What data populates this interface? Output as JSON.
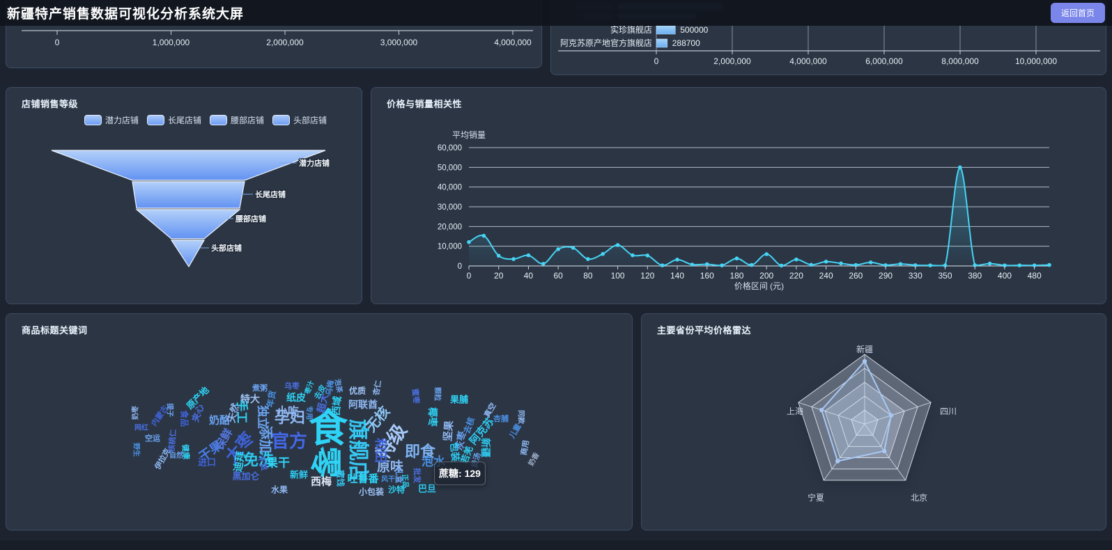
{
  "header": {
    "title": "新疆特产销售数据可视化分析系统大屏",
    "back_button_label": "返回首页"
  },
  "colors": {
    "page_bg": "#1d2430",
    "panel_bg": "#2b3544",
    "panel_border": "#3e4b61",
    "accent_button": "#7b86ea",
    "line_color": "#46d4f4",
    "bar_color": "#8ec6f6",
    "funnel_light": "#b3d0fa",
    "funnel_dark": "#6292f2",
    "radar_data": "#a8c8f4"
  },
  "chart_data": [
    {
      "id": "top-left-partial-bar",
      "type": "bar",
      "x_ticks": [
        "0",
        "1,000,000",
        "2,000,000",
        "3,000,000",
        "4,000,000"
      ]
    },
    {
      "id": "top-right-partial-bar",
      "type": "bar",
      "orientation": "horizontal",
      "categories": [
        "实珍旗舰店",
        "阿克苏原产地官方旗舰店"
      ],
      "values": [
        500000,
        288700
      ],
      "value_labels": [
        "500000",
        "288700"
      ],
      "x_ticks": [
        "0",
        "2,000,000",
        "4,000,000",
        "6,000,000",
        "8,000,000",
        "10,000,000"
      ],
      "xlim": [
        0,
        10000000
      ]
    },
    {
      "id": "store-sales-funnel",
      "type": "funnel",
      "title": "店铺销售等级",
      "legend": [
        "潜力店铺",
        "长尾店铺",
        "腰部店铺",
        "头部店铺"
      ],
      "stages": [
        "潜力店铺",
        "长尾店铺",
        "腰部店铺",
        "头部店铺"
      ]
    },
    {
      "id": "price-sales-line",
      "type": "line",
      "title": "价格与销量相关性",
      "ylabel": "平均销量",
      "xlabel": "价格区间 (元)",
      "ylim": [
        0,
        60000
      ],
      "y_ticks": [
        "60,000",
        "50,000",
        "40,000",
        "30,000",
        "20,000",
        "10,000",
        "0"
      ],
      "x_tick_labels": [
        "0",
        "20",
        "40",
        "60",
        "80",
        "100",
        "120",
        "140",
        "160",
        "180",
        "200",
        "220",
        "240",
        "260",
        "290",
        "330",
        "350",
        "380",
        "400",
        "480"
      ],
      "values": [
        12100,
        15300,
        5200,
        3500,
        5400,
        1100,
        8500,
        9200,
        3500,
        6100,
        10600,
        5400,
        5300,
        300,
        3200,
        700,
        900,
        300,
        3800,
        500,
        6000,
        200,
        3300,
        600,
        2200,
        1300,
        500,
        1800,
        400,
        1000,
        400,
        300,
        300,
        50000,
        400,
        1200,
        300,
        300,
        300,
        500
      ]
    },
    {
      "id": "title-keywords-cloud",
      "type": "wordcloud",
      "title": "商品标题关键词",
      "tooltip_text": "蔗糖: 129",
      "words": [
        {
          "t": "食",
          "x": 462,
          "y": 160,
          "s": 56,
          "c": "#2fd3f5",
          "r": 0
        },
        {
          "t": "零",
          "x": 461,
          "y": 213,
          "s": 46,
          "c": "#2fd3f5",
          "r": 90
        },
        {
          "t": "旗舰店",
          "x": 508,
          "y": 196,
          "s": 30,
          "c": "#35c8f2",
          "r": 90
        },
        {
          "t": "特级",
          "x": 551,
          "y": 182,
          "s": 27,
          "c": "#a7c8f6",
          "r": -55
        },
        {
          "t": "官方",
          "x": 406,
          "y": 181,
          "s": 26,
          "c": "#4468e8",
          "r": 0
        },
        {
          "t": "孕妇",
          "x": 407,
          "y": 147,
          "s": 22,
          "c": "#8fb8f2",
          "r": 0
        },
        {
          "t": "添加",
          "x": 374,
          "y": 180,
          "s": 20,
          "c": "#6ba3f0",
          "r": 90
        },
        {
          "t": "免洗",
          "x": 362,
          "y": 208,
          "s": 22,
          "c": "#2ec9ef",
          "r": 0
        },
        {
          "t": "大枣",
          "x": 333,
          "y": 190,
          "s": 24,
          "c": "#3f63d8",
          "r": -50
        },
        {
          "t": "干果",
          "x": 293,
          "y": 196,
          "s": 18,
          "c": "#4a7de8",
          "r": -35
        },
        {
          "t": "保鲜",
          "x": 311,
          "y": 179,
          "s": 16,
          "c": "#5578e0",
          "r": -60
        },
        {
          "t": "无核",
          "x": 532,
          "y": 150,
          "s": 20,
          "c": "#8fc6f5",
          "r": -50
        },
        {
          "t": "即食",
          "x": 594,
          "y": 196,
          "s": 22,
          "c": "#7fb4f2",
          "r": 0
        },
        {
          "t": "原味",
          "x": 551,
          "y": 218,
          "s": 19,
          "c": "#8fb8f2",
          "r": 0
        },
        {
          "t": "和田",
          "x": 538,
          "y": 196,
          "s": 18,
          "c": "#3f63d8",
          "r": 90
        },
        {
          "t": "泡水",
          "x": 613,
          "y": 210,
          "s": 17,
          "c": "#4a90e2",
          "r": 0
        },
        {
          "t": "果干",
          "x": 390,
          "y": 212,
          "s": 17,
          "c": "#2fd3f5",
          "r": 0
        },
        {
          "t": "西梅",
          "x": 452,
          "y": 240,
          "s": 15,
          "c": "#dde7f4",
          "r": 0
        },
        {
          "t": "吐鲁番",
          "x": 512,
          "y": 236,
          "s": 15,
          "c": "#2fd3f5",
          "r": 0
        },
        {
          "t": "蜜饯",
          "x": 480,
          "y": 236,
          "s": 12,
          "c": "#35c8f2",
          "r": 90
        },
        {
          "t": "黑加仑",
          "x": 344,
          "y": 232,
          "s": 13,
          "c": "#4a6fe0",
          "r": 0
        },
        {
          "t": "新鲜",
          "x": 420,
          "y": 230,
          "s": 13,
          "c": "#2ec9ef",
          "r": 0
        },
        {
          "t": "水果",
          "x": 392,
          "y": 252,
          "s": 12,
          "c": "#8fb8f2",
          "r": 0
        },
        {
          "t": "小包装",
          "x": 524,
          "y": 255,
          "s": 12,
          "c": "#9fc3f5",
          "r": 0
        },
        {
          "t": "沙特",
          "x": 560,
          "y": 252,
          "s": 12,
          "c": "#2fd3f5",
          "r": 0
        },
        {
          "t": "巴旦",
          "x": 604,
          "y": 250,
          "s": 13,
          "c": "#2ec9ef",
          "r": 0
        },
        {
          "t": "批发",
          "x": 590,
          "y": 232,
          "s": 11,
          "c": "#4a6fe0",
          "r": 90
        },
        {
          "t": "礼盒",
          "x": 564,
          "y": 232,
          "s": 11,
          "c": "#6ba3f0",
          "r": 90
        },
        {
          "t": "干货",
          "x": 368,
          "y": 214,
          "s": 11,
          "c": "#4a6fe0",
          "r": 75
        },
        {
          "t": "迪拜",
          "x": 334,
          "y": 212,
          "s": 15,
          "c": "#2fd3f5",
          "r": -80
        },
        {
          "t": "进口",
          "x": 288,
          "y": 212,
          "s": 13,
          "c": "#3f63d8",
          "r": 0
        },
        {
          "t": "伊拉克",
          "x": 224,
          "y": 208,
          "s": 11,
          "c": "#8fb8f2",
          "r": -60
        },
        {
          "t": "野生",
          "x": 188,
          "y": 195,
          "s": 10,
          "c": "#4a90e2",
          "r": 90
        },
        {
          "t": "自然",
          "x": 244,
          "y": 202,
          "s": 10,
          "c": "#6ba3f0",
          "r": 0
        },
        {
          "t": "健康",
          "x": 258,
          "y": 198,
          "s": 11,
          "c": "#2fd3f5",
          "r": 85
        },
        {
          "t": "核桃仁",
          "x": 238,
          "y": 182,
          "s": 11,
          "c": "#4a6fe0",
          "r": -85
        },
        {
          "t": "空运",
          "x": 210,
          "y": 178,
          "s": 11,
          "c": "#6ba3f0",
          "r": 0
        },
        {
          "t": "网红",
          "x": 194,
          "y": 162,
          "s": 10,
          "c": "#4a6fe0",
          "r": 0
        },
        {
          "t": "奶枣",
          "x": 184,
          "y": 142,
          "s": 10,
          "c": "#8fb8f2",
          "r": -90
        },
        {
          "t": "内蒙古",
          "x": 220,
          "y": 146,
          "s": 11,
          "c": "#3f63d8",
          "r": -55
        },
        {
          "t": "提子",
          "x": 236,
          "y": 138,
          "s": 10,
          "c": "#6ba3f0",
          "r": 90
        },
        {
          "t": "食品",
          "x": 256,
          "y": 150,
          "s": 12,
          "c": "#3f63d8",
          "r": 90
        },
        {
          "t": "夹心",
          "x": 274,
          "y": 142,
          "s": 13,
          "c": "#4a6fe0",
          "r": -70
        },
        {
          "t": "奶酪",
          "x": 306,
          "y": 152,
          "s": 15,
          "c": "#6ba3f0",
          "r": 0
        },
        {
          "t": "天然",
          "x": 326,
          "y": 142,
          "s": 14,
          "c": "#8fb8f2",
          "r": -75
        },
        {
          "t": "原产地",
          "x": 274,
          "y": 120,
          "s": 13,
          "c": "#2fd3f5",
          "r": -45
        },
        {
          "t": "手工",
          "x": 340,
          "y": 140,
          "s": 17,
          "c": "#2fd3f5",
          "r": 90
        },
        {
          "t": "独立",
          "x": 370,
          "y": 148,
          "s": 17,
          "c": "#6ba3f0",
          "r": 90
        },
        {
          "t": "小吃",
          "x": 404,
          "y": 138,
          "s": 16,
          "c": "#8fb8f2",
          "r": 0
        },
        {
          "t": "特大",
          "x": 350,
          "y": 122,
          "s": 14,
          "c": "#9fc3f5",
          "r": 0
        },
        {
          "t": "年货",
          "x": 380,
          "y": 122,
          "s": 12,
          "c": "#4a90e2",
          "r": -80
        },
        {
          "t": "纸皮",
          "x": 416,
          "y": 120,
          "s": 14,
          "c": "#2fd3f5",
          "r": 0
        },
        {
          "t": "煮粥",
          "x": 364,
          "y": 106,
          "s": 11,
          "c": "#6ba3f0",
          "r": 0
        },
        {
          "t": "乌枣",
          "x": 410,
          "y": 103,
          "s": 11,
          "c": "#4a6fe0",
          "r": 0
        },
        {
          "t": "枣汁",
          "x": 434,
          "y": 105,
          "s": 10,
          "c": "#2fd3f5",
          "r": -70
        },
        {
          "t": "去皮",
          "x": 450,
          "y": 112,
          "s": 11,
          "c": "#2ec9ef",
          "r": -60
        },
        {
          "t": "乌梅",
          "x": 464,
          "y": 106,
          "s": 11,
          "c": "#4a90e2",
          "r": -80
        },
        {
          "t": "泡茶",
          "x": 478,
          "y": 103,
          "s": 10,
          "c": "#6ba3f0",
          "r": 80
        },
        {
          "t": "优质",
          "x": 504,
          "y": 110,
          "s": 12,
          "c": "#9fc3f5",
          "r": 0
        },
        {
          "t": "杏仁",
          "x": 532,
          "y": 106,
          "s": 11,
          "c": "#8fb8f2",
          "r": -80
        },
        {
          "t": "超大",
          "x": 454,
          "y": 128,
          "s": 14,
          "c": "#4a6fe0",
          "r": -75
        },
        {
          "t": "西域",
          "x": 474,
          "y": 132,
          "s": 14,
          "c": "#2fd3f5",
          "r": -85
        },
        {
          "t": "阿联酋",
          "x": 512,
          "y": 130,
          "s": 14,
          "c": "#8fb8f2",
          "r": 0
        },
        {
          "t": "专用",
          "x": 436,
          "y": 142,
          "s": 10,
          "c": "#4a90e2",
          "r": 90
        },
        {
          "t": "果脯",
          "x": 650,
          "y": 122,
          "s": 13,
          "c": "#2fd3f5",
          "r": 0
        },
        {
          "t": "颗粒",
          "x": 620,
          "y": 115,
          "s": 10,
          "c": "#6ba3f0",
          "r": 90
        },
        {
          "t": "蜜枣",
          "x": 588,
          "y": 118,
          "s": 11,
          "c": "#4a6fe0",
          "r": 85
        },
        {
          "t": "椰枣",
          "x": 612,
          "y": 148,
          "s": 14,
          "c": "#2fd3f5",
          "r": 90
        },
        {
          "t": "坚果",
          "x": 634,
          "y": 168,
          "s": 15,
          "c": "#8fb8f2",
          "r": -85
        },
        {
          "t": "灰枣",
          "x": 652,
          "y": 182,
          "s": 14,
          "c": "#6ba3f0",
          "r": -80
        },
        {
          "t": "去核",
          "x": 664,
          "y": 160,
          "s": 12,
          "c": "#4a90e2",
          "r": -70
        },
        {
          "t": "阿克苏",
          "x": 682,
          "y": 168,
          "s": 15,
          "c": "#2ec9ef",
          "r": -50
        },
        {
          "t": "真空",
          "x": 694,
          "y": 138,
          "s": 11,
          "c": "#8fb8f2",
          "r": -60
        },
        {
          "t": "杏脯",
          "x": 710,
          "y": 150,
          "s": 11,
          "c": "#4a90e2",
          "r": 0
        },
        {
          "t": "同款",
          "x": 740,
          "y": 148,
          "s": 10,
          "c": "#8fb8f2",
          "r": 90
        },
        {
          "t": "儿童",
          "x": 730,
          "y": 168,
          "s": 11,
          "c": "#4a90e2",
          "r": -60
        },
        {
          "t": "包装",
          "x": 644,
          "y": 198,
          "s": 14,
          "c": "#2ec9ef",
          "r": 85
        },
        {
          "t": "若羌",
          "x": 660,
          "y": 202,
          "s": 13,
          "c": "#2fd3f5",
          "r": -70
        },
        {
          "t": "煲汤",
          "x": 674,
          "y": 210,
          "s": 11,
          "c": "#6ba3f0",
          "r": -75
        },
        {
          "t": "新疆",
          "x": 688,
          "y": 192,
          "s": 14,
          "c": "#2ec9ef",
          "r": 90
        },
        {
          "t": "商用",
          "x": 744,
          "y": 192,
          "s": 11,
          "c": "#8fb8f2",
          "r": -80
        },
        {
          "t": "奶香",
          "x": 756,
          "y": 208,
          "s": 10,
          "c": "#9fb0c8",
          "r": -60
        },
        {
          "t": "风干",
          "x": 548,
          "y": 236,
          "s": 10,
          "c": "#4a90e2",
          "r": 0
        },
        {
          "t": "正品",
          "x": 574,
          "y": 240,
          "s": 10,
          "c": "#2fd3f5",
          "r": 85
        }
      ]
    },
    {
      "id": "province-price-radar",
      "type": "radar",
      "title": "主要省份平均价格雷达",
      "indicators": [
        "新疆",
        "四川",
        "北京",
        "宁夏",
        "上海"
      ],
      "values_fraction_of_max": [
        0.9,
        0.4,
        0.48,
        0.66,
        0.65
      ]
    }
  ]
}
